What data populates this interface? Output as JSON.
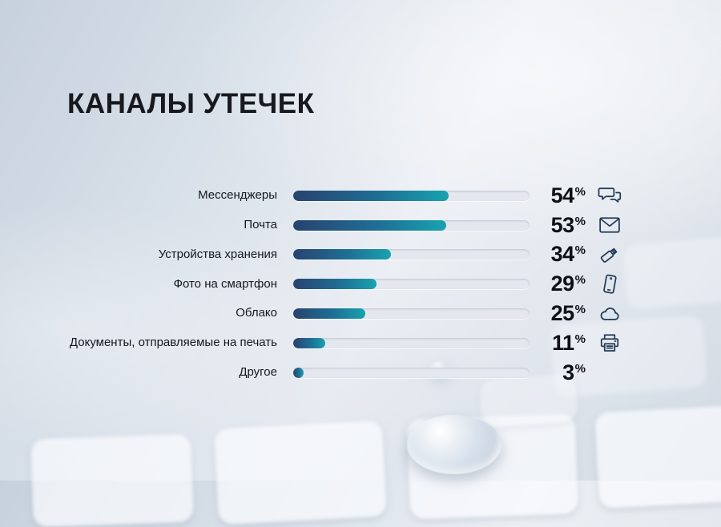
{
  "title": "КАНАЛЫ УТЕЧЕК",
  "unit": "%",
  "colors": {
    "bar_gradient_start": "#27436f",
    "bar_gradient_end": "#17a3ae",
    "track": "#e4e8ee",
    "title_text": "#17191f",
    "value_text": "#0d1016",
    "icon_stroke": "#223a57"
  },
  "chart_data": {
    "type": "bar",
    "orientation": "horizontal",
    "title": "КАНАЛЫ УТЕЧЕК",
    "categories": [
      "Мессенджеры",
      "Почта",
      "Устройства хранения",
      "Фото на смартфон",
      "Облако",
      "Документы, отправляемые на печать",
      "Другое"
    ],
    "values": [
      54,
      53,
      34,
      29,
      25,
      11,
      3
    ],
    "unit": "%",
    "value_labels": [
      "54%",
      "53%",
      "34%",
      "29%",
      "25%",
      "11%",
      "3%"
    ],
    "icons": [
      "chat",
      "envelope",
      "usb-drive",
      "smartphone",
      "cloud",
      "printer",
      null
    ],
    "xlim": [
      0,
      82
    ],
    "grid": false,
    "legend": false
  }
}
